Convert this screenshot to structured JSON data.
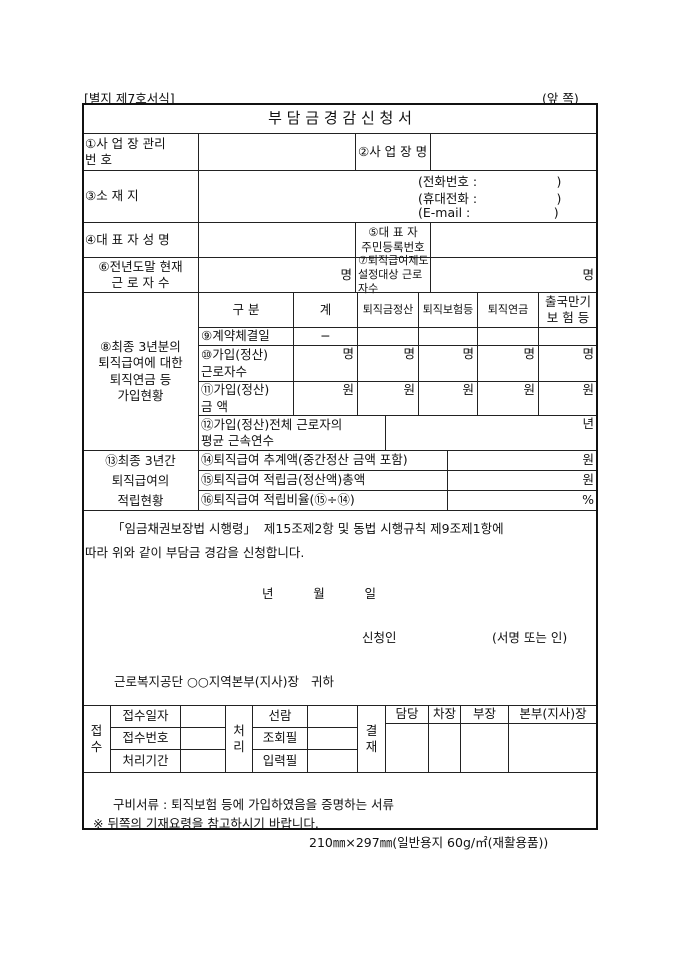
{
  "header": {
    "form_no": "[별지 제7호서식]",
    "side": "(앞 쪽)",
    "title": "부 담 금 경 감 신 청 서"
  },
  "fields": {
    "f1": "①사 업 장 관리\n   번          호",
    "f2": "②사 업 장 명",
    "f3": "③소 재 지",
    "phone": "(전화번호 :                    )",
    "mobile": "(휴대전화 :                    )",
    "email": "(E-mail :                     )",
    "f4": "④대 표 자 성 명",
    "f5": "⑤대    표    자\n주민등록번호",
    "f6": "⑥전년도말  현재\n근 로 자 수",
    "f6_unit": "명",
    "f7": "⑦퇴직급여제도\n설정대상 근로자수",
    "f7_unit": "명"
  },
  "section8": {
    "label": "⑧최종 3년분의\n퇴직급여에 대한\n퇴직연금 등\n가입현황",
    "headers": [
      "구 분",
      "계",
      "퇴직금정산",
      "퇴직보험등",
      "퇴직연금",
      "출국만기\n보 험 등"
    ],
    "r9": {
      "label": "⑨계약체결일",
      "total": "−"
    },
    "r10": {
      "label": "⑩가입(정산)\n근로자수",
      "unit": "명"
    },
    "r11": {
      "label": "⑪가입(정산)\n금      액",
      "unit": "원"
    },
    "r12": {
      "label": "⑫가입(정산)전체  근로자의\n  평균 근속연수",
      "unit": "년"
    }
  },
  "section13": {
    "label": "⑬최종 3년간\n퇴직급여의\n적립현황",
    "r14": {
      "label": "⑭퇴직급여 추계액(중간정산 금액 포함)",
      "unit": "원"
    },
    "r15": {
      "label": "⑮퇴직급여  적립금(정산액)총액",
      "unit": "원"
    },
    "r16": {
      "label": "⑯퇴직급여  적립비율(⑮÷⑭)",
      "unit": "%"
    }
  },
  "statement": {
    "line1": "「임금채권보장법 시행령」  제15조제2항 및 동법 시행규칙 제9조제1항에",
    "line2": "따라 위와 같이 부담금 경감을 신청합니다.",
    "date": "년          월          일",
    "applicant": "신청인",
    "sign": "(서명 또는 인)",
    "addressee": "근로복지공단 ○○지역본부(지사)장   귀하"
  },
  "office": {
    "receipt": "접\n수",
    "receipt_items": [
      "접수일자",
      "접수번호",
      "처리기간"
    ],
    "process": "처\n리",
    "process_items": [
      "선람",
      "조회필",
      "입력필"
    ],
    "approval": "결\n재",
    "approvers": [
      "담당",
      "차장",
      "부장",
      "본부(지사)장"
    ]
  },
  "footer": {
    "docs": "구비서류 : 퇴직보험 등에 가입하였음을 증명하는 서류",
    "note": "※ 뒤쪽의 기재요령을 참고하시기 바랍니다.",
    "paper": "210㎜×297㎜(일반용지 60g/㎡(재활용품))"
  }
}
